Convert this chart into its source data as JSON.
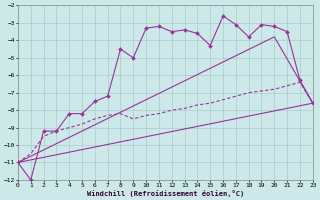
{
  "xlabel": "Windchill (Refroidissement éolien,°C)",
  "background_color": "#cce8e8",
  "grid_color": "#aacccc",
  "line_color": "#993399",
  "x_min": 0,
  "x_max": 23,
  "y_min": -12,
  "y_max": -2,
  "x_ticks": [
    0,
    1,
    2,
    3,
    4,
    5,
    6,
    7,
    8,
    9,
    10,
    11,
    12,
    13,
    14,
    15,
    16,
    17,
    18,
    19,
    20,
    21,
    22,
    23
  ],
  "y_ticks": [
    -12,
    -11,
    -10,
    -9,
    -8,
    -7,
    -6,
    -5,
    -4,
    -3,
    -2
  ],
  "line1_x": [
    0,
    1,
    2,
    3,
    4,
    5,
    6,
    7,
    8,
    9,
    10,
    11,
    12,
    13,
    14,
    15,
    16,
    17,
    18,
    19,
    20,
    21,
    22,
    23
  ],
  "line1_y": [
    -11,
    -12,
    -9.2,
    -9.2,
    -8.2,
    -8.2,
    -7.5,
    -7.2,
    -4.5,
    -5.0,
    -3.3,
    -3.2,
    -3.5,
    -3.4,
    -3.6,
    -4.3,
    -2.6,
    -3.1,
    -3.8,
    -3.1,
    -3.2,
    -3.5,
    -6.3,
    -7.6
  ],
  "line2_x": [
    0,
    1,
    2,
    3,
    4,
    5,
    6,
    7,
    8,
    9,
    10,
    11,
    12,
    13,
    14,
    15,
    16,
    17,
    18,
    19,
    20,
    21,
    22,
    23
  ],
  "line2_y": [
    -11.0,
    -10.5,
    -9.5,
    -9.2,
    -9.0,
    -8.8,
    -8.5,
    -8.3,
    -8.2,
    -8.5,
    -8.3,
    -8.2,
    -8.0,
    -7.9,
    -7.7,
    -7.6,
    -7.4,
    -7.2,
    -7.0,
    -6.9,
    -6.8,
    -6.6,
    -6.4,
    -7.6
  ],
  "line3_x": [
    0,
    23
  ],
  "line3_y": [
    -11.0,
    -7.6
  ],
  "line4_x": [
    0,
    20,
    23
  ],
  "line4_y": [
    -11.0,
    -3.8,
    -7.6
  ]
}
